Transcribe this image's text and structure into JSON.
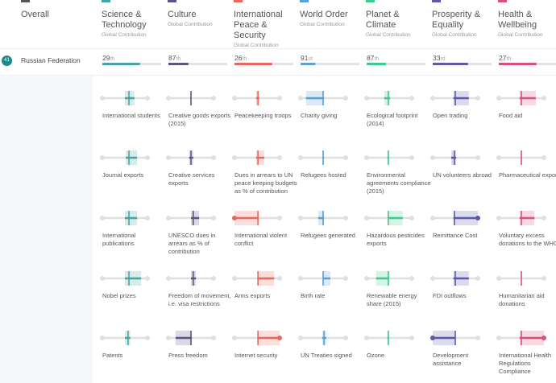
{
  "header": {
    "overall": "Overall"
  },
  "row": {
    "position": "41",
    "country": "Russian Federation"
  },
  "categories": [
    {
      "title": "Science & Technology",
      "subtitle": "Global Contribution",
      "color": "#4aa3a6",
      "rank": "29",
      "suffix": "th",
      "bar": 64,
      "indicators": [
        {
          "label": "International students",
          "band": [
            50,
            71
          ],
          "marker": 59
        },
        {
          "label": "Journal exports",
          "band": [
            52,
            77
          ],
          "marker": 59
        },
        {
          "label": "International publications",
          "band": [
            50,
            77
          ],
          "marker": 59
        },
        {
          "label": "Nobel prizes",
          "band": [
            50,
            86
          ],
          "marker": 59
        },
        {
          "label": "Patents",
          "band": [
            50,
            62
          ],
          "marker": 57
        }
      ]
    },
    {
      "title": "Culture",
      "subtitle": "Global Contribution",
      "color": "#5b5585",
      "rank": "87",
      "suffix": "th",
      "bar": 34,
      "indicators": [
        {
          "label": "Creative goods exports (2015)",
          "band": [
            49,
            51
          ],
          "marker": 50
        },
        {
          "label": "Creative services exports",
          "band": [
            46,
            55
          ],
          "marker": 50
        },
        {
          "label": "UNESCO dues in arrears as % of contribution",
          "band": [
            50,
            68
          ],
          "marker": 55
        },
        {
          "label": "Freedom of movement, i.e. visa restrictions",
          "band": [
            50,
            61
          ],
          "marker": 55
        },
        {
          "label": "Press freedom",
          "band": [
            16,
            52
          ],
          "marker": 50
        }
      ]
    },
    {
      "title": "International Peace & Security",
      "subtitle": "Global Contribution",
      "color": "#e8675f",
      "rank": "26",
      "suffix": "th",
      "bar": 64,
      "indicators": [
        {
          "label": "Peacekeeping troops",
          "band": [
            48,
            55
          ],
          "marker": 52
        },
        {
          "label": "Dues in arrears to UN peace keeping budgets as % of contribution",
          "band": [
            48,
            66
          ],
          "marker": 52
        },
        {
          "label": "International violent conflict",
          "band": [
            0,
            52
          ],
          "marker": 52
        },
        {
          "label": "Arms exports",
          "band": [
            52,
            88
          ],
          "marker": 52
        },
        {
          "label": "Internet security",
          "band": [
            52,
            100
          ],
          "marker": 52
        }
      ]
    },
    {
      "title": "World Order",
      "subtitle": "Global Contribution",
      "color": "#5b9fd6",
      "rank": "91",
      "suffix": "st",
      "bar": 25,
      "indicators": [
        {
          "label": "Charity giving",
          "band": [
            12,
            52
          ],
          "marker": 50
        },
        {
          "label": "Refugees hosted",
          "band": [
            49,
            52
          ],
          "marker": 50
        },
        {
          "label": "Refugees generated",
          "band": [
            39,
            52
          ],
          "marker": 50
        },
        {
          "label": "Birth rate",
          "band": [
            50,
            66
          ],
          "marker": 50
        },
        {
          "label": "UN Treaties signed",
          "band": [
            48,
            57
          ],
          "marker": 52
        }
      ]
    },
    {
      "title": "Planet & Climate",
      "subtitle": "Global Contribution",
      "color": "#40c98e",
      "rank": "87",
      "suffix": "th",
      "bar": 33,
      "indicators": [
        {
          "label": "Ecological footprint (2014)",
          "band": [
            39,
            52
          ],
          "marker": 48
        },
        {
          "label": "Environmental agreements compliance (2015)",
          "band": [
            46,
            50
          ],
          "marker": 48
        },
        {
          "label": "Hazardous pesticides exports",
          "band": [
            48,
            80
          ],
          "marker": 48
        },
        {
          "label": "Renewable energy share (2015)",
          "band": [
            21,
            50
          ],
          "marker": 48
        },
        {
          "label": "Ozone",
          "band": [
            46,
            50
          ],
          "marker": 48
        }
      ]
    },
    {
      "title": "Prosperity & Equality",
      "subtitle": "Global Contribution",
      "color": "#5c5aa8",
      "rank": "33",
      "suffix": "rd",
      "bar": 60,
      "indicators": [
        {
          "label": "Open trading",
          "band": [
            46,
            80
          ],
          "marker": 50
        },
        {
          "label": "UN volunteers abroad",
          "band": [
            41,
            52
          ],
          "marker": 48
        },
        {
          "label": "Remittance Cost",
          "band": [
            46,
            100
          ],
          "marker": 48
        },
        {
          "label": "FDI outflows",
          "band": [
            46,
            80
          ],
          "marker": 50
        },
        {
          "label": "Development assistance",
          "band": [
            0,
            50
          ],
          "marker": 50
        }
      ]
    },
    {
      "title": "Health & Wellbeing",
      "subtitle": "Global Contribution",
      "color": "#d9507c",
      "rank": "27",
      "suffix": "th",
      "bar": 64,
      "indicators": [
        {
          "label": "Food aid",
          "band": [
            46,
            82
          ],
          "marker": 50
        },
        {
          "label": "Pharmaceutical exports",
          "band": [
            49,
            51
          ],
          "marker": 50
        },
        {
          "label": "Voluntary excess donations to the WHO",
          "band": [
            46,
            79
          ],
          "marker": 50
        },
        {
          "label": "Humanitarian aid donations",
          "band": [
            50,
            50
          ],
          "marker": 50
        },
        {
          "label": "International Health Regulations Compliance",
          "band": [
            46,
            100
          ],
          "marker": 50
        }
      ]
    }
  ]
}
